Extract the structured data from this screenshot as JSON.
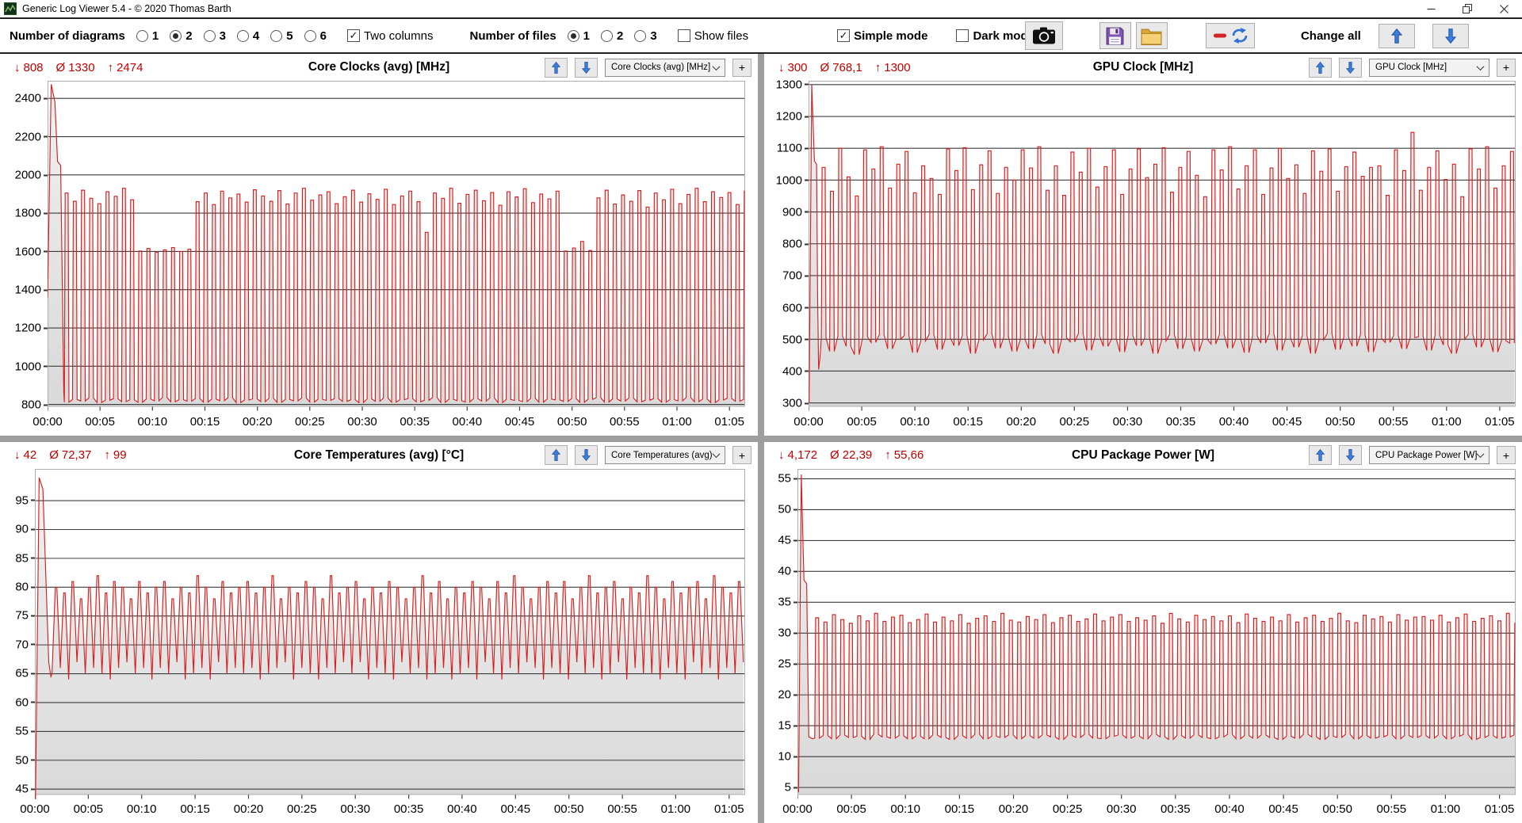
{
  "window": {
    "title": "Generic Log Viewer 5.4 - © 2020 Thomas Barth"
  },
  "icons": {
    "min": "↓",
    "avg": "Ø",
    "max": "↑",
    "check": "✓",
    "plus": "+"
  },
  "toolbar": {
    "diagrams": {
      "label": "Number of diagrams",
      "options": [
        "1",
        "2",
        "3",
        "4",
        "5",
        "6"
      ],
      "selected": "2"
    },
    "two_columns": {
      "label": "Two columns",
      "checked": true
    },
    "files": {
      "label": "Number of files",
      "options": [
        "1",
        "2",
        "3"
      ],
      "selected": "1"
    },
    "show_files": {
      "label": "Show files",
      "checked": false
    },
    "simple_mode": {
      "label": "Simple mode",
      "checked": true
    },
    "dark_mode": {
      "label": "Dark mode",
      "checked": false
    },
    "change_all": {
      "label": "Change all"
    }
  },
  "chart_data": [
    {
      "type": "line",
      "title": "Core Clocks (avg) [MHz]",
      "selector": "Core Clocks (avg) [MHz]",
      "stats": {
        "min": "808",
        "avg": "1330",
        "max": "2474"
      },
      "line_color": "#d62020",
      "grid": "horizontal",
      "x_tick_labels": [
        "00:00",
        "00:05",
        "00:10",
        "00:15",
        "00:20",
        "00:25",
        "00:30",
        "00:35",
        "00:40",
        "00:45",
        "00:50",
        "00:55",
        "01:00",
        "01:05"
      ],
      "x_range_min": [
        0,
        66.5
      ],
      "y_ticks": [
        800,
        1000,
        1200,
        1400,
        1600,
        1800,
        2000,
        2200,
        2400
      ],
      "y_range": [
        788,
        2492
      ],
      "series": {
        "lead_in": [
          [
            0,
            1360
          ],
          [
            0.35,
            2474
          ],
          [
            0.7,
            2380
          ],
          [
            0.95,
            2070
          ],
          [
            1.25,
            2050
          ],
          [
            1.55,
            860
          ]
        ],
        "osc": {
          "shape": "square",
          "start_min": 1.6,
          "period_min": 0.78,
          "lows": [
            812,
            826,
            818,
            834,
            810,
            822,
            830,
            815,
            824,
            811,
            828,
            819,
            836,
            814,
            825,
            817,
            831,
            812,
            828,
            820,
            835,
            810,
            823,
            829,
            815,
            832,
            811,
            826,
            819,
            834,
            813,
            827,
            821,
            830,
            816,
            824,
            810,
            829,
            817,
            833,
            812,
            825,
            831,
            814,
            822,
            836,
            811,
            827,
            820,
            813,
            830,
            818,
            834,
            810,
            826,
            821,
            815,
            832,
            812,
            828,
            824,
            816,
            831,
            811,
            827,
            835,
            813,
            829,
            818,
            833,
            814,
            822,
            830,
            812,
            825,
            819,
            836,
            815,
            828,
            810,
            823,
            832,
            817,
            826
          ],
          "highs": [
            1905,
            1862,
            1920,
            1878,
            1850,
            1912,
            1888,
            1930,
            1870,
            1602,
            1615,
            1596,
            1608,
            1620,
            1600,
            1612,
            1860,
            1905,
            1845,
            1915,
            1880,
            1900,
            1858,
            1922,
            1890,
            1862,
            1918,
            1848,
            1905,
            1930,
            1868,
            1895,
            1912,
            1850,
            1886,
            1920,
            1858,
            1902,
            1872,
            1925,
            1845,
            1890,
            1915,
            1860,
            1700,
            1905,
            1878,
            1930,
            1852,
            1898,
            1920,
            1865,
            1908,
            1842,
            1912,
            1885,
            1928,
            1855,
            1900,
            1875,
            1915,
            1602,
            1618,
            1652,
            1605,
            1880,
            1920,
            1848,
            1895,
            1862,
            1918,
            1832,
            1905,
            1870,
            1925,
            1850,
            1898,
            1930,
            1860,
            1912,
            1882,
            1908,
            1845,
            1918
          ]
        }
      }
    },
    {
      "type": "line",
      "title": "GPU Clock [MHz]",
      "selector": "GPU Clock [MHz]",
      "stats": {
        "min": "300",
        "avg": "768,1",
        "max": "1300"
      },
      "line_color": "#d62020",
      "grid": "horizontal",
      "x_tick_labels": [
        "00:00",
        "00:05",
        "00:10",
        "00:15",
        "00:20",
        "00:25",
        "00:30",
        "00:35",
        "00:40",
        "00:45",
        "00:50",
        "00:55",
        "01:00",
        "01:05"
      ],
      "x_range_min": [
        0,
        66.5
      ],
      "y_ticks": [
        300,
        400,
        500,
        600,
        700,
        800,
        900,
        1000,
        1100,
        1200,
        1300
      ],
      "y_range": [
        288,
        1312
      ],
      "series": {
        "lead_in": [
          [
            0.05,
            300
          ],
          [
            0.3,
            1300
          ],
          [
            0.55,
            1060
          ],
          [
            0.75,
            1050
          ],
          [
            0.85,
            640
          ],
          [
            0.95,
            405
          ],
          [
            1.1,
            452
          ]
        ],
        "osc": {
          "shape": "square",
          "start_min": 1.2,
          "period_min": 0.78,
          "lows": [
            505,
            462,
            510,
            478,
            452,
            508,
            490,
            515,
            470,
            500,
            512,
            458,
            495,
            515,
            468,
            505,
            480,
            512,
            455,
            498,
            518,
            472,
            508,
            462,
            500,
            470,
            515,
            485,
            455,
            505,
            492,
            518,
            465,
            510,
            478,
            502,
            460,
            512,
            480,
            505,
            455,
            495,
            515,
            470,
            508,
            462,
            500,
            485,
            515,
            472,
            502,
            458,
            510,
            488,
            518,
            465,
            505,
            475,
            512,
            455,
            498,
            518,
            468,
            508,
            478,
            515,
            460,
            502,
            490,
            512,
            470,
            505,
            508,
            465,
            512,
            482,
            455,
            500,
            515,
            475,
            505,
            460,
            495,
            488
          ],
          "highs": [
            1040,
            965,
            1100,
            1010,
            950,
            1095,
            1035,
            1105,
            975,
            1050,
            1090,
            960,
            1045,
            1005,
            955,
            1098,
            1030,
            1102,
            970,
            1048,
            1092,
            958,
            1040,
            1000,
            1095,
            1038,
            1105,
            968,
            1045,
            952,
            1088,
            1025,
            1100,
            978,
            1042,
            1095,
            955,
            1035,
            1098,
            1008,
            1050,
            1102,
            962,
            1040,
            1090,
            1015,
            948,
            1095,
            1032,
            1105,
            972,
            1045,
            1095,
            955,
            1038,
            1100,
            1005,
            1048,
            958,
            1092,
            1028,
            1098,
            965,
            1042,
            1088,
            1012,
            1040,
            1045,
            952,
            1095,
            1030,
            1150,
            968,
            1040,
            1092,
            1002,
            1050,
            948,
            1098,
            1035,
            1105,
            975,
            1045,
            1090
          ]
        }
      }
    },
    {
      "type": "line",
      "title": "Core Temperatures (avg) [°C]",
      "selector": "Core Temperatures (avg)",
      "stats": {
        "min": "42",
        "avg": "72,37",
        "max": "99"
      },
      "line_color": "#d62020",
      "grid": "horizontal",
      "x_tick_labels": [
        "00:00",
        "00:05",
        "00:10",
        "00:15",
        "00:20",
        "00:25",
        "00:30",
        "00:35",
        "00:40",
        "00:45",
        "00:50",
        "00:55",
        "01:00",
        "01:05"
      ],
      "x_range_min": [
        0,
        66.5
      ],
      "y_ticks": [
        45,
        50,
        55,
        60,
        65,
        70,
        75,
        80,
        85,
        90,
        95
      ],
      "y_range": [
        44,
        100.5
      ],
      "series": {
        "lead_in": [
          [
            0.05,
            42
          ],
          [
            0.4,
            99
          ],
          [
            0.75,
            97
          ],
          [
            1.3,
            67
          ],
          [
            1.5,
            64.5
          ]
        ],
        "osc": {
          "shape": "trapezoid",
          "start_min": 1.6,
          "period_min": 0.78,
          "lows": [
            65,
            66,
            64,
            67,
            65,
            66,
            65,
            64,
            66,
            67,
            65,
            66,
            64,
            66,
            65,
            67,
            64,
            65,
            66,
            64,
            67,
            65,
            66,
            65,
            66,
            64,
            65,
            66,
            67,
            64,
            66,
            65,
            64,
            66,
            65,
            67,
            65,
            67,
            64,
            66,
            65,
            64,
            67,
            65,
            66,
            64,
            65,
            66,
            64,
            65,
            66,
            64,
            67,
            65,
            64,
            66,
            65,
            67,
            66,
            64,
            66,
            65,
            64,
            67,
            65,
            66,
            64,
            65,
            67,
            64,
            66,
            65,
            65,
            64,
            66,
            65,
            64,
            67,
            65,
            66,
            64,
            66,
            65,
            67
          ],
          "highs": [
            80,
            79,
            81,
            78,
            80,
            82,
            79,
            81,
            80,
            78,
            81,
            79,
            80,
            81,
            78,
            80,
            79,
            82,
            80,
            78,
            81,
            79,
            80,
            81,
            79,
            80,
            82,
            78,
            80,
            79,
            81,
            80,
            78,
            82,
            79,
            80,
            81,
            78,
            80,
            79,
            81,
            80,
            78,
            80,
            82,
            79,
            81,
            78,
            80,
            79,
            81,
            80,
            78,
            81,
            79,
            82,
            80,
            78,
            80,
            81,
            79,
            81,
            78,
            80,
            82,
            79,
            80,
            81,
            78,
            80,
            79,
            82,
            80,
            78,
            81,
            79,
            80,
            81,
            78,
            82,
            80,
            79,
            81,
            80
          ]
        }
      }
    },
    {
      "type": "line",
      "title": "CPU Package Power [W]",
      "selector": "CPU Package Power [W]",
      "stats": {
        "min": "4,172",
        "avg": "22,39",
        "max": "55,66"
      },
      "line_color": "#d62020",
      "grid": "horizontal",
      "x_tick_labels": [
        "00:00",
        "00:05",
        "00:10",
        "00:15",
        "00:20",
        "00:25",
        "00:30",
        "00:35",
        "00:40",
        "00:45",
        "00:50",
        "00:55",
        "01:00",
        "01:05"
      ],
      "x_range_min": [
        0,
        66.5
      ],
      "y_ticks": [
        5,
        10,
        15,
        20,
        25,
        30,
        35,
        40,
        45,
        50,
        55
      ],
      "y_range": [
        3.8,
        56.6
      ],
      "series": {
        "lead_in": [
          [
            0.1,
            4.2
          ],
          [
            0.35,
            55.7
          ],
          [
            0.6,
            38.6
          ],
          [
            0.85,
            38.0
          ],
          [
            1.05,
            13.2
          ],
          [
            1.4,
            12.9
          ]
        ],
        "osc": {
          "shape": "square",
          "start_min": 1.6,
          "period_min": 0.78,
          "lows": [
            13.0,
            13.4,
            12.9,
            13.5,
            13.1,
            13.3,
            12.8,
            13.6,
            13.2,
            13.0,
            13.4,
            12.9,
            13.3,
            12.9,
            13.5,
            13.1,
            12.8,
            13.4,
            13.0,
            13.6,
            12.9,
            13.3,
            13.1,
            13.5,
            12.9,
            13.4,
            13.0,
            13.5,
            13.2,
            12.8,
            13.4,
            13.1,
            13.6,
            13.0,
            12.9,
            13.3,
            13.5,
            13.0,
            13.3,
            12.9,
            13.6,
            13.2,
            12.8,
            13.4,
            13.0,
            13.5,
            13.1,
            12.9,
            13.2,
            13.6,
            12.9,
            13.4,
            13.0,
            13.5,
            13.1,
            12.8,
            13.3,
            13.0,
            13.6,
            13.2,
            12.8,
            13.3,
            13.1,
            13.6,
            12.9,
            13.4,
            13.0,
            13.2,
            13.5,
            12.9,
            13.4,
            13.1,
            13.4,
            13.0,
            13.5,
            12.9,
            13.3,
            13.6,
            12.8,
            13.1,
            13.4,
            13.0,
            13.2,
            13.5
          ],
          "highs": [
            32.5,
            31.8,
            33.0,
            32.2,
            31.6,
            32.8,
            32.0,
            33.2,
            31.9,
            32.6,
            32.9,
            31.7,
            32.2,
            33.1,
            31.8,
            32.6,
            32.0,
            33.0,
            31.6,
            32.4,
            32.8,
            31.9,
            33.2,
            32.1,
            31.8,
            32.7,
            32.2,
            33.0,
            31.7,
            32.5,
            32.9,
            31.9,
            32.3,
            33.1,
            32.0,
            32.6,
            33.0,
            31.9,
            32.5,
            32.1,
            32.8,
            31.6,
            33.2,
            32.3,
            31.8,
            32.9,
            32.2,
            32.7,
            32.0,
            32.8,
            31.7,
            33.1,
            32.4,
            31.9,
            32.6,
            32.0,
            33.0,
            31.8,
            32.5,
            32.9,
            31.9,
            32.4,
            33.2,
            32.0,
            31.7,
            32.9,
            32.3,
            32.7,
            31.8,
            33.0,
            32.1,
            32.6,
            32.7,
            32.1,
            32.9,
            31.8,
            32.5,
            33.1,
            31.9,
            32.4,
            32.8,
            32.0,
            33.2,
            31.7
          ]
        }
      }
    }
  ]
}
